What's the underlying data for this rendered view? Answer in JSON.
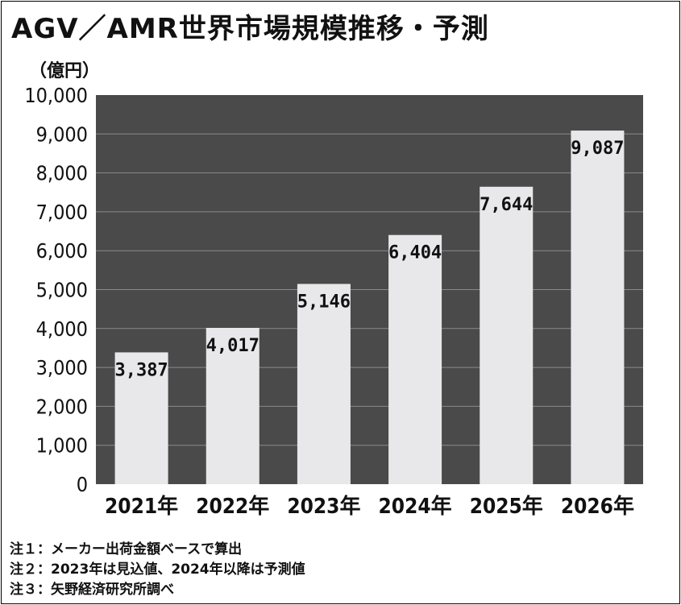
{
  "title": "AGV／AMR世界市場規模推移・予測",
  "unit_label": "（億円）",
  "notes": [
    "注１：メーカー出荷金額ベースで算出",
    "注２：2023年は見込値、2024年以降は予測値",
    "注３：矢野経済研究所調べ"
  ],
  "colors": {
    "plot_background": "#4a4a4a",
    "bar_fill": "#e8e7ea",
    "gridline": "#8a8a8a",
    "text": "#111111"
  },
  "chart_data": {
    "type": "bar",
    "title": "AGV／AMR世界市場規模推移・予測",
    "ylabel": "（億円）",
    "xlabel": "",
    "categories": [
      "2021年",
      "2022年",
      "2023年",
      "2024年",
      "2025年",
      "2026年"
    ],
    "values": [
      3387,
      4017,
      5146,
      6404,
      7644,
      9087
    ],
    "value_labels": [
      "3,387",
      "4,017",
      "5,146",
      "6,404",
      "7,644",
      "9,087"
    ],
    "ylim": [
      0,
      10000
    ],
    "yticks": [
      0,
      1000,
      2000,
      3000,
      4000,
      5000,
      6000,
      7000,
      8000,
      9000,
      10000
    ],
    "ytick_labels": [
      "0",
      "1,000",
      "2,000",
      "3,000",
      "4,000",
      "5,000",
      "6,000",
      "7,000",
      "8,000",
      "9,000",
      "10,000"
    ],
    "grid": true,
    "legend": "none"
  }
}
